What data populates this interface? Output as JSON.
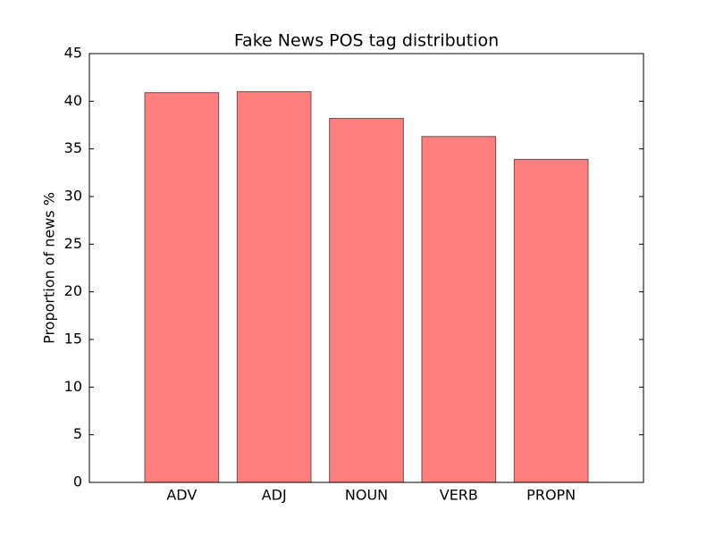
{
  "chart_data": {
    "type": "bar",
    "title": "Fake News POS tag distribution",
    "y_label": "Proportion of news %",
    "categories": [
      "ADV",
      "ADJ",
      "NOUN",
      "VERB",
      "PROPN"
    ],
    "values": [
      40.9,
      41.0,
      38.2,
      36.3,
      33.9
    ],
    "color": "#ff7f7f",
    "ylim": [
      0,
      45
    ],
    "yticks": [
      0,
      5,
      10,
      15,
      20,
      25,
      30,
      35,
      40,
      45
    ],
    "grid": false
  }
}
